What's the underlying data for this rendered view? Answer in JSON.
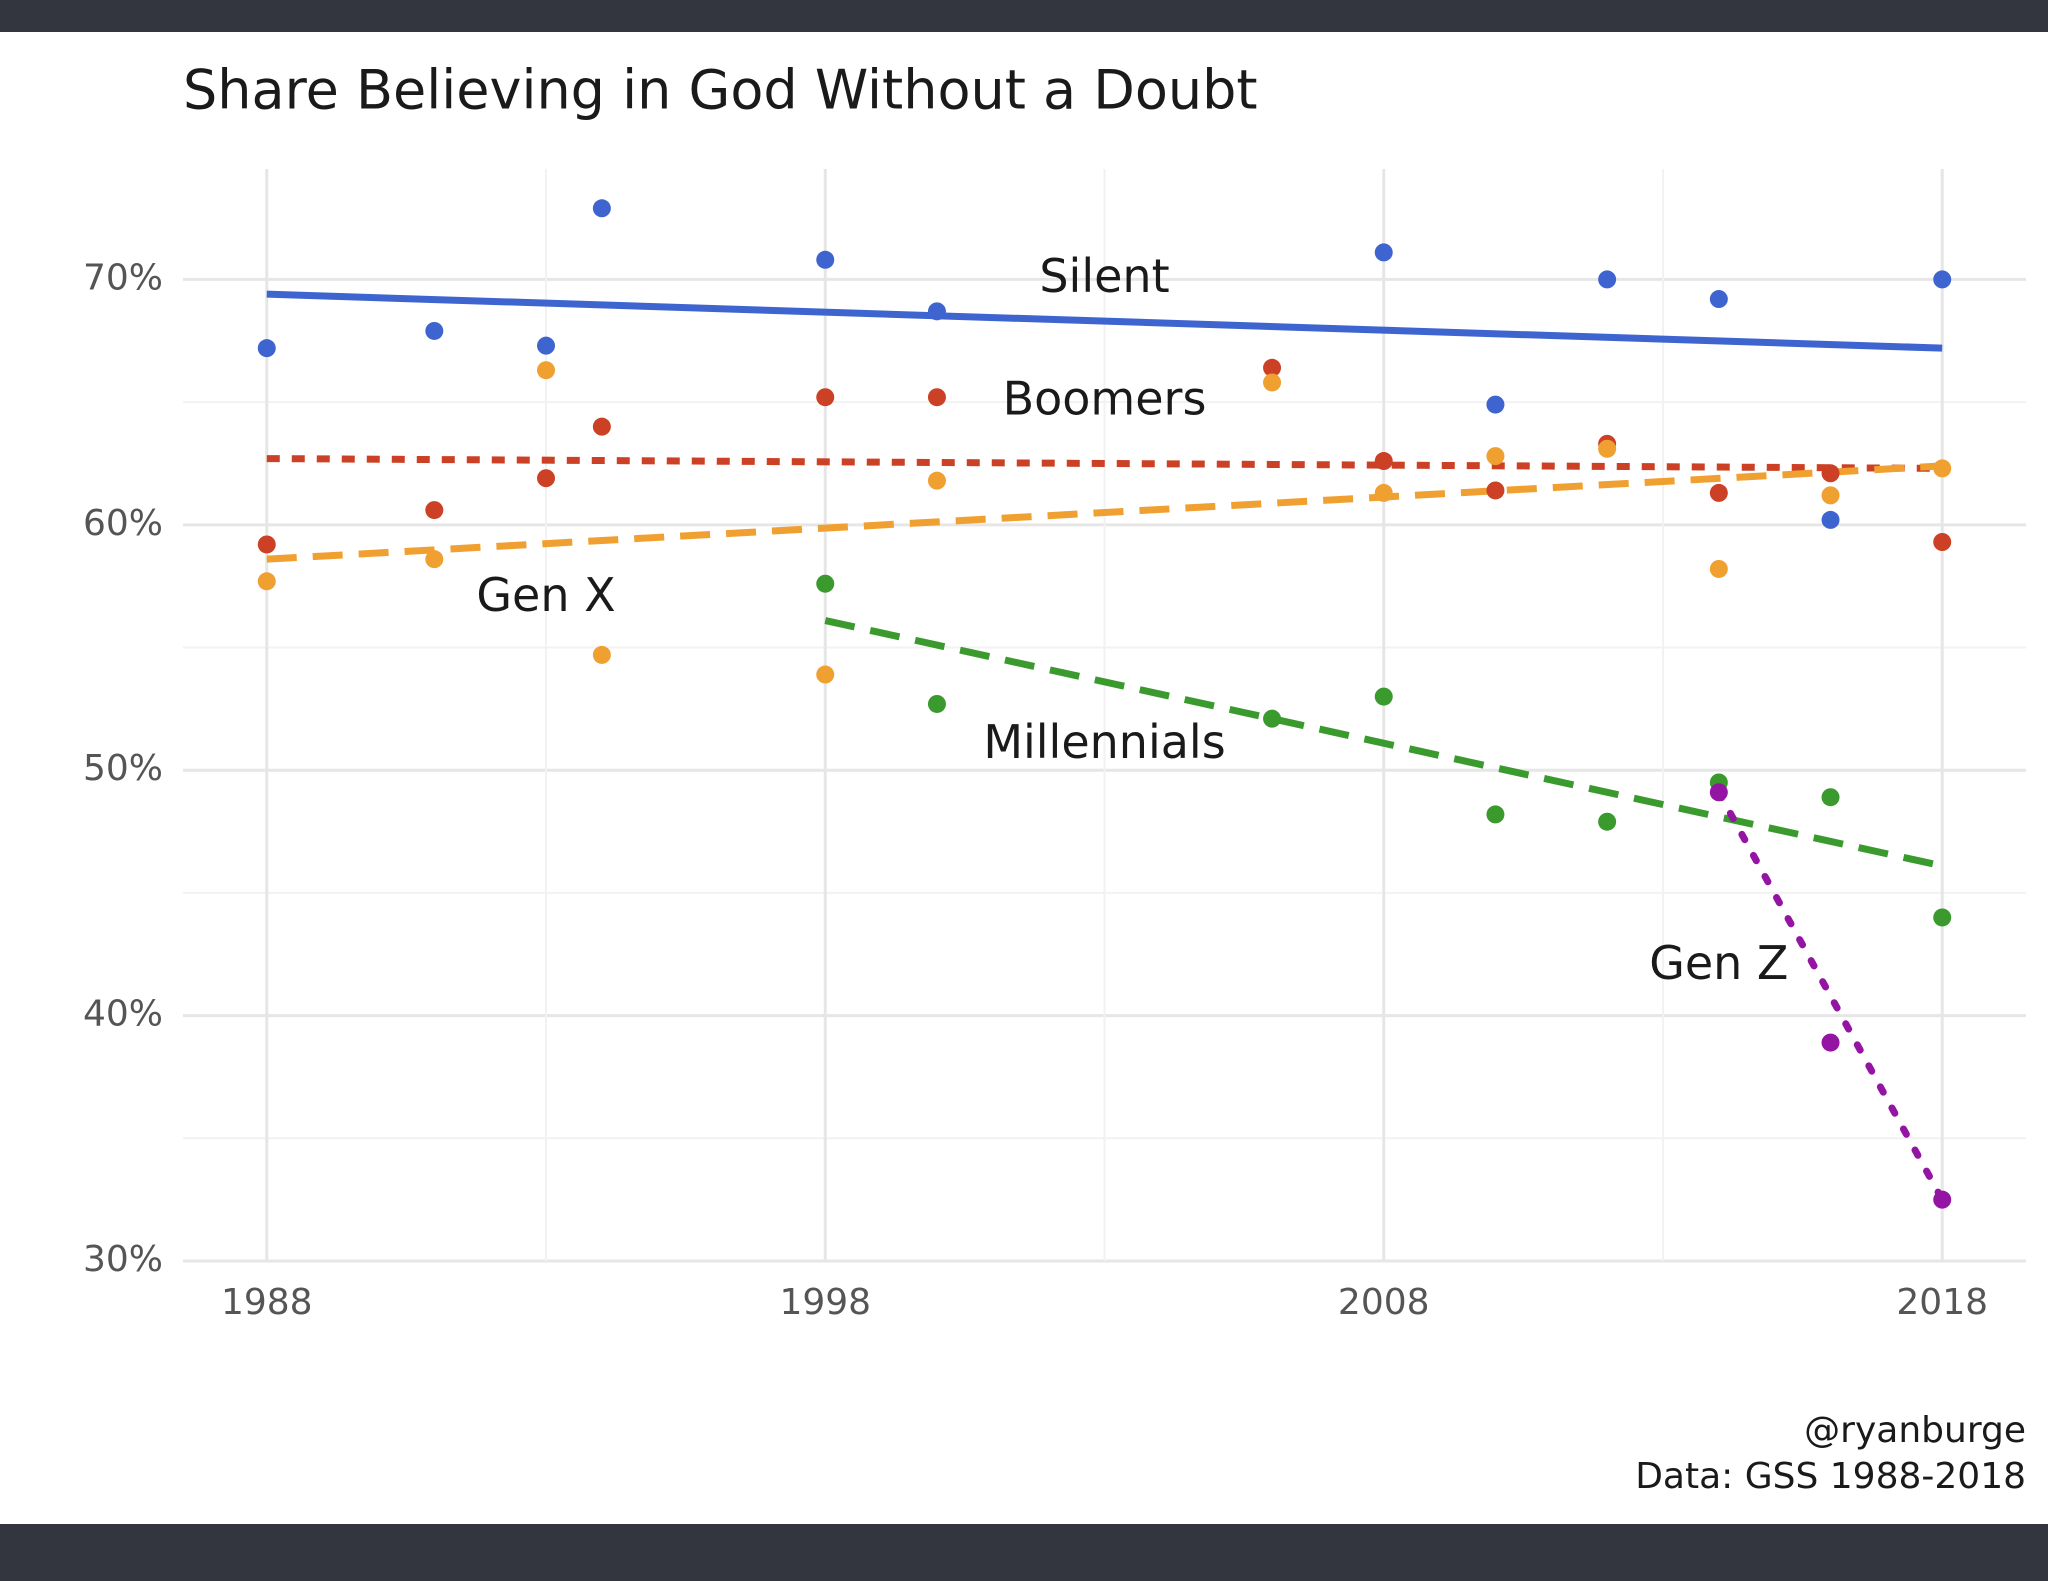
{
  "chart_data": {
    "type": "scatter",
    "title": "Share Believing in God Without a Doubt",
    "xlabel": "",
    "ylabel": "",
    "x_ticks": [
      1988,
      1998,
      2008,
      2018
    ],
    "y_ticks": [
      {
        "value": 30,
        "label": "30%"
      },
      {
        "value": 40,
        "label": "40%"
      },
      {
        "value": 50,
        "label": "50%"
      },
      {
        "value": 60,
        "label": "60%"
      },
      {
        "value": 70,
        "label": "70%"
      }
    ],
    "xlim": [
      1986.5,
      2019.5
    ],
    "ylim": [
      30,
      74.5
    ],
    "grid": true,
    "legend": "none (direct labels)",
    "series": [
      {
        "name": "Silent",
        "color": "#3e64cf",
        "trend": "solid",
        "points": [
          [
            1988,
            67.2
          ],
          [
            1991,
            67.9
          ],
          [
            1993,
            67.3
          ],
          [
            1994,
            72.9
          ],
          [
            1998,
            70.8
          ],
          [
            2000,
            68.7
          ],
          [
            2008,
            71.1
          ],
          [
            2010,
            64.9
          ],
          [
            2012,
            70.0
          ],
          [
            2014,
            69.2
          ],
          [
            2016,
            60.2
          ],
          [
            2018,
            70.0
          ]
        ],
        "trend_line": [
          [
            1988,
            69.4
          ],
          [
            2018,
            67.2
          ]
        ]
      },
      {
        "name": "Boomers",
        "color": "#cc4125",
        "trend": "dotted",
        "points": [
          [
            1988,
            59.2
          ],
          [
            1991,
            60.6
          ],
          [
            1993,
            61.9
          ],
          [
            1994,
            64.0
          ],
          [
            1998,
            65.2
          ],
          [
            2000,
            65.2
          ],
          [
            2006,
            66.4
          ],
          [
            2008,
            62.6
          ],
          [
            2010,
            61.4
          ],
          [
            2012,
            63.3
          ],
          [
            2014,
            61.3
          ],
          [
            2016,
            62.1
          ],
          [
            2018,
            59.3
          ]
        ],
        "trend_line": [
          [
            1988,
            62.7
          ],
          [
            2018,
            62.3
          ]
        ]
      },
      {
        "name": "Gen X",
        "color": "#f0a030",
        "trend": "dashed",
        "points": [
          [
            1988,
            57.7
          ],
          [
            1991,
            58.6
          ],
          [
            1993,
            66.3
          ],
          [
            1994,
            54.7
          ],
          [
            1998,
            53.9
          ],
          [
            2000,
            61.8
          ],
          [
            2006,
            65.8
          ],
          [
            2008,
            61.3
          ],
          [
            2010,
            62.8
          ],
          [
            2012,
            63.1
          ],
          [
            2014,
            58.2
          ],
          [
            2016,
            61.2
          ],
          [
            2018,
            62.3
          ]
        ],
        "trend_line": [
          [
            1988,
            58.6
          ],
          [
            2018,
            62.4
          ]
        ]
      },
      {
        "name": "Millennials",
        "color": "#3a9a2e",
        "trend": "dashed",
        "points": [
          [
            1998,
            57.6
          ],
          [
            2000,
            52.7
          ],
          [
            2006,
            52.1
          ],
          [
            2008,
            53.0
          ],
          [
            2010,
            48.2
          ],
          [
            2012,
            47.9
          ],
          [
            2014,
            49.5
          ],
          [
            2016,
            48.9
          ],
          [
            2018,
            44.0
          ]
        ],
        "trend_line": [
          [
            1998,
            56.1
          ],
          [
            2018,
            46.1
          ]
        ]
      },
      {
        "name": "Gen Z",
        "color": "#9414a4",
        "trend": "dotted",
        "points": [
          [
            2014,
            49.1
          ],
          [
            2016,
            38.9
          ],
          [
            2018,
            32.5
          ]
        ],
        "trend_line": [
          [
            2014,
            49.1
          ],
          [
            2018,
            32.5
          ]
        ]
      }
    ],
    "series_labels": [
      {
        "text": "Silent",
        "x": 2003.0,
        "y": 70.0
      },
      {
        "text": "Boomers",
        "x": 2003.0,
        "y": 65.0
      },
      {
        "text": "Gen X",
        "x": 1993.0,
        "y": 57.0
      },
      {
        "text": "Millennials",
        "x": 2003.0,
        "y": 51.0
      },
      {
        "text": "Gen Z",
        "x": 2014.0,
        "y": 42.0
      }
    ],
    "caption": [
      "@ryanburge",
      "Data: GSS 1988-2018"
    ]
  }
}
